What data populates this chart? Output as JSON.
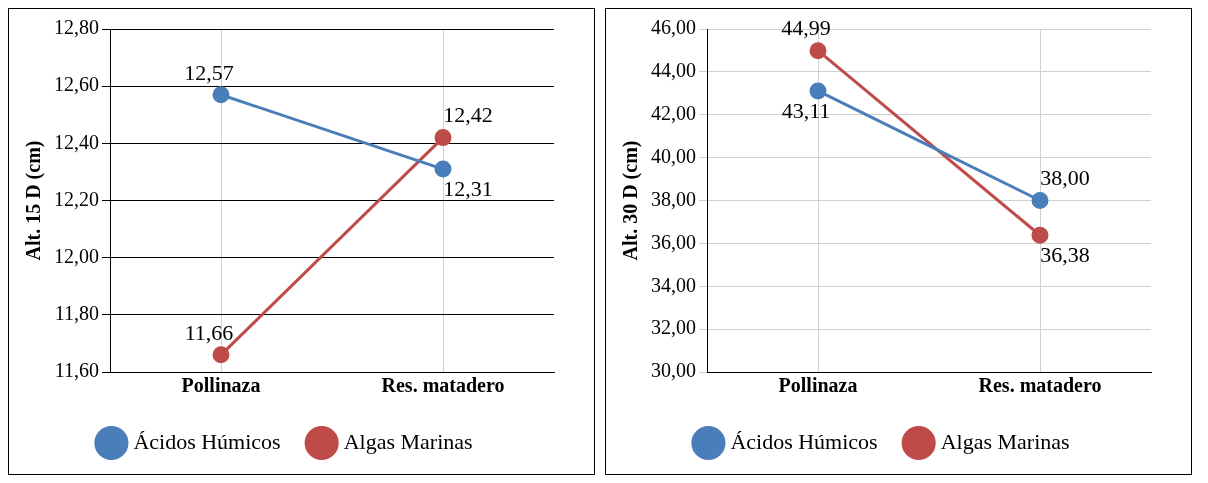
{
  "chart_data": [
    {
      "type": "line",
      "ylabel": "Alt. 15 D (cm)",
      "categories": [
        "Pollinaza",
        "Res. matadero"
      ],
      "series": [
        {
          "name": "Ácidos Húmicos",
          "color": "#4a7ebb",
          "values": [
            12.57,
            12.31
          ]
        },
        {
          "name": "Algas Marinas",
          "color": "#be4b48",
          "values": [
            11.66,
            12.42
          ]
        }
      ],
      "ylim": [
        11.6,
        12.8
      ],
      "yticks": [
        {
          "value": 11.6,
          "label": "11,60"
        },
        {
          "value": 11.8,
          "label": "11,80"
        },
        {
          "value": 12.0,
          "label": "12,00"
        },
        {
          "value": 12.2,
          "label": "12,20"
        },
        {
          "value": 12.4,
          "label": "12,40"
        },
        {
          "value": 12.6,
          "label": "12,60"
        },
        {
          "value": 12.8,
          "label": "12,80"
        }
      ],
      "value_labels": [
        [
          "12,57",
          "12,31"
        ],
        [
          "11,66",
          "12,42"
        ]
      ],
      "grid": true,
      "legend": "bottom",
      "marker": "circle"
    },
    {
      "type": "line",
      "ylabel": "Alt. 30 D (cm)",
      "categories": [
        "Pollinaza",
        "Res. matadero"
      ],
      "series": [
        {
          "name": "Ácidos Húmicos",
          "color": "#4a7ebb",
          "values": [
            43.11,
            38.0
          ]
        },
        {
          "name": "Algas Marinas",
          "color": "#be4b48",
          "values": [
            44.99,
            36.38
          ]
        }
      ],
      "ylim": [
        30,
        46
      ],
      "yticks": [
        {
          "value": 30,
          "label": "30,00"
        },
        {
          "value": 32,
          "label": "32,00"
        },
        {
          "value": 34,
          "label": "34,00"
        },
        {
          "value": 36,
          "label": "36,00"
        },
        {
          "value": 38,
          "label": "38,00"
        },
        {
          "value": 40,
          "label": "40,00"
        },
        {
          "value": 42,
          "label": "42,00"
        },
        {
          "value": 44,
          "label": "44,00"
        },
        {
          "value": 46,
          "label": "46,00"
        }
      ],
      "value_labels": [
        [
          "43,11",
          "38,00"
        ],
        [
          "44,99",
          "36,38"
        ]
      ],
      "grid": true,
      "legend": "bottom",
      "marker": "circle"
    }
  ]
}
